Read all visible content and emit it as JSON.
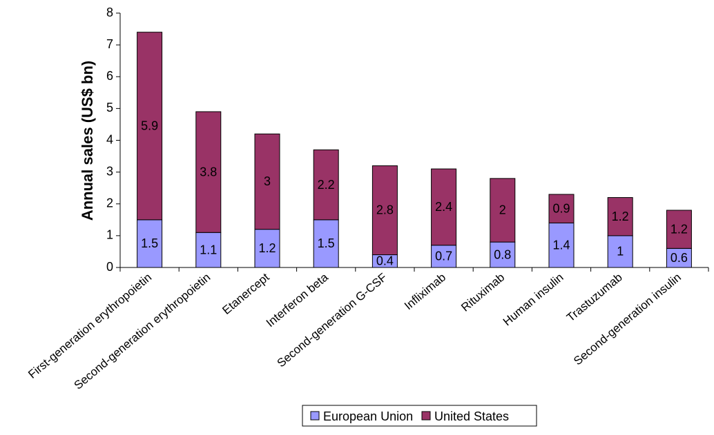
{
  "chart_data": {
    "type": "bar",
    "stacked": true,
    "title": "",
    "xlabel": "",
    "ylabel": "Annual sales (US$ bn)",
    "ylim": [
      0,
      8
    ],
    "yticks": [
      0,
      1,
      2,
      3,
      4,
      5,
      6,
      7,
      8
    ],
    "grid": false,
    "legend_position": "bottom",
    "categories": [
      "First-generation erythropoietin",
      "Second-generation erythropoietin",
      "Etanercept",
      "Interferon beta",
      "Second-generation G-CSF",
      "Infliximab",
      "Rituximab",
      "Human insulin",
      "Trastuzumab",
      "Second-generation insulin"
    ],
    "series": [
      {
        "name": "European Union",
        "color": "#9999ff",
        "values": [
          1.5,
          1.1,
          1.2,
          1.5,
          0.4,
          0.7,
          0.8,
          1.4,
          1,
          0.6
        ],
        "labels": [
          "1.5",
          "1.1",
          "1.2",
          "1.5",
          "0.4",
          "0.7",
          "0.8",
          "1.4",
          "1",
          "0.6"
        ]
      },
      {
        "name": "United States",
        "color": "#993366",
        "values": [
          5.9,
          3.8,
          3,
          2.2,
          2.8,
          2.4,
          2,
          0.9,
          1.2,
          1.2
        ],
        "labels": [
          "5.9",
          "3.8",
          "3",
          "2.2",
          "2.8",
          "2.4",
          "2",
          "0.9",
          "1.2",
          "1.2"
        ]
      }
    ]
  }
}
